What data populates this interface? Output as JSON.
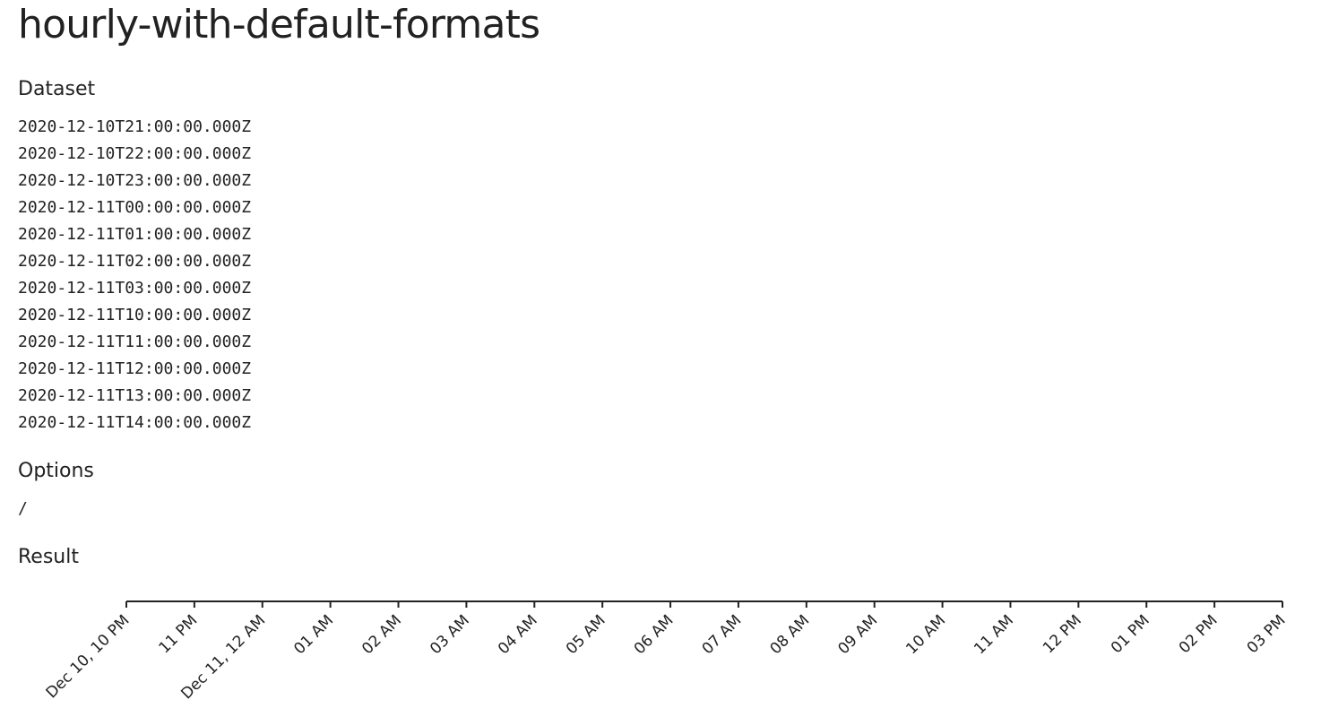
{
  "page": {
    "title": "hourly-with-default-formats"
  },
  "sections": {
    "dataset_label": "Dataset",
    "options_label": "Options",
    "result_label": "Result"
  },
  "dataset": [
    "2020-12-10T21:00:00.000Z",
    "2020-12-10T22:00:00.000Z",
    "2020-12-10T23:00:00.000Z",
    "2020-12-11T00:00:00.000Z",
    "2020-12-11T01:00:00.000Z",
    "2020-12-11T02:00:00.000Z",
    "2020-12-11T03:00:00.000Z",
    "2020-12-11T10:00:00.000Z",
    "2020-12-11T11:00:00.000Z",
    "2020-12-11T12:00:00.000Z",
    "2020-12-11T13:00:00.000Z",
    "2020-12-11T14:00:00.000Z"
  ],
  "options": {
    "value": "/"
  },
  "colors": {
    "text": "#222222",
    "axis": "#222222"
  },
  "chart_data": {
    "type": "table",
    "xlim": [
      "Dec 10, 10 PM",
      "03 PM"
    ],
    "tick_labels": [
      "Dec 10, 10 PM",
      "11 PM",
      "Dec 11, 12 AM",
      "01 AM",
      "02 AM",
      "03 AM",
      "04 AM",
      "05 AM",
      "06 AM",
      "07 AM",
      "08 AM",
      "09 AM",
      "10 AM",
      "11 AM",
      "12 PM",
      "01 PM",
      "02 PM",
      "03 PM"
    ]
  }
}
